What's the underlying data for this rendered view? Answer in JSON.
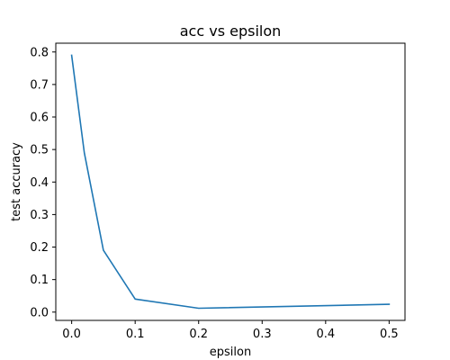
{
  "chart_data": {
    "type": "line",
    "title": "acc vs epsilon",
    "xlabel": "epsilon",
    "ylabel": "test accuracy",
    "xlim": [
      -0.025,
      0.525
    ],
    "ylim": [
      -0.0255,
      0.827
    ],
    "xticks": [
      0.0,
      0.1,
      0.2,
      0.3,
      0.4,
      0.5
    ],
    "xtick_labels": [
      "0.0",
      "0.1",
      "0.2",
      "0.3",
      "0.4",
      "0.5"
    ],
    "yticks": [
      0.0,
      0.1,
      0.2,
      0.3,
      0.4,
      0.5,
      0.6,
      0.7,
      0.8
    ],
    "ytick_labels": [
      "0.0",
      "0.1",
      "0.2",
      "0.3",
      "0.4",
      "0.5",
      "0.6",
      "0.7",
      "0.8"
    ],
    "grid": false,
    "series": [
      {
        "color": "#1f77b4",
        "x": [
          0.0,
          0.02,
          0.05,
          0.1,
          0.2,
          0.5
        ],
        "y": [
          0.79,
          0.49,
          0.19,
          0.04,
          0.012,
          0.024
        ]
      }
    ]
  }
}
